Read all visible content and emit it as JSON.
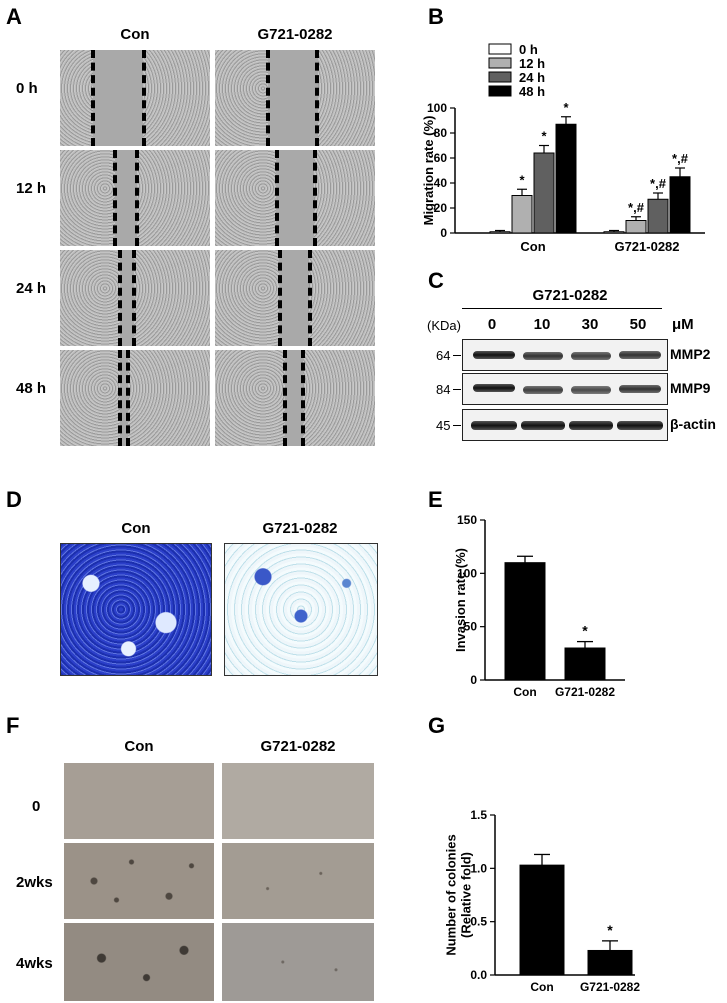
{
  "panels": {
    "A": "A",
    "B": "B",
    "C": "C",
    "D": "D",
    "E": "E",
    "F": "F",
    "G": "G"
  },
  "panelA": {
    "columns": [
      "Con",
      "G721-0282"
    ],
    "rows": [
      "0 h",
      "12 h",
      "24 h",
      "48 h"
    ]
  },
  "panelB": {
    "chart_data": {
      "type": "bar",
      "ylabel": "Migration rate (%)",
      "ylim": [
        0,
        100
      ],
      "yticks": [
        0,
        20,
        40,
        60,
        80,
        100
      ],
      "categories": [
        "Con",
        "G721-0282"
      ],
      "series": [
        {
          "name": "0 h",
          "color": "#ffffff",
          "values": [
            1,
            1
          ],
          "errors": [
            1,
            1
          ],
          "labels": [
            "",
            ""
          ]
        },
        {
          "name": "12 h",
          "color": "#b0b0b0",
          "values": [
            30,
            10
          ],
          "errors": [
            5,
            3
          ],
          "labels": [
            "*",
            "*,#"
          ]
        },
        {
          "name": "24 h",
          "color": "#606060",
          "values": [
            64,
            27
          ],
          "errors": [
            6,
            5
          ],
          "labels": [
            "*",
            "*,#"
          ]
        },
        {
          "name": "48 h",
          "color": "#000000",
          "values": [
            87,
            45
          ],
          "errors": [
            6,
            7
          ],
          "labels": [
            "*",
            "*,#"
          ]
        }
      ]
    }
  },
  "panelC": {
    "treatment": "G721-0282",
    "unit_label": "(KDa)",
    "doses": [
      "0",
      "10",
      "30",
      "50"
    ],
    "dose_unit": "μM",
    "blots": [
      {
        "marker": "64",
        "protein": "MMP2"
      },
      {
        "marker": "84",
        "protein": "MMP9"
      },
      {
        "marker": "45",
        "protein": "β-actin"
      }
    ]
  },
  "panelD": {
    "columns": [
      "Con",
      "G721-0282"
    ]
  },
  "panelE": {
    "chart_data": {
      "type": "bar",
      "ylabel": "Invasion rate (%)",
      "ylim": [
        0,
        150
      ],
      "yticks": [
        0,
        50,
        100,
        150
      ],
      "categories": [
        "Con",
        "G721-0282"
      ],
      "values": [
        110,
        30
      ],
      "errors": [
        6,
        6
      ],
      "labels": [
        "",
        "*"
      ]
    }
  },
  "panelF": {
    "columns": [
      "Con",
      "G721-0282"
    ],
    "rows": [
      "0",
      "2wks",
      "4wks"
    ]
  },
  "panelG": {
    "chart_data": {
      "type": "bar",
      "ylabel_lines": [
        "Number of colonies",
        "(Relative fold)"
      ],
      "ylim": [
        0,
        1.5
      ],
      "yticks": [
        "0.0",
        "0.5",
        "1.0",
        "1.5"
      ],
      "categories": [
        "Con",
        "G721-0282"
      ],
      "values": [
        1.03,
        0.23
      ],
      "errors": [
        0.1,
        0.09
      ],
      "labels": [
        "",
        "*"
      ]
    }
  }
}
